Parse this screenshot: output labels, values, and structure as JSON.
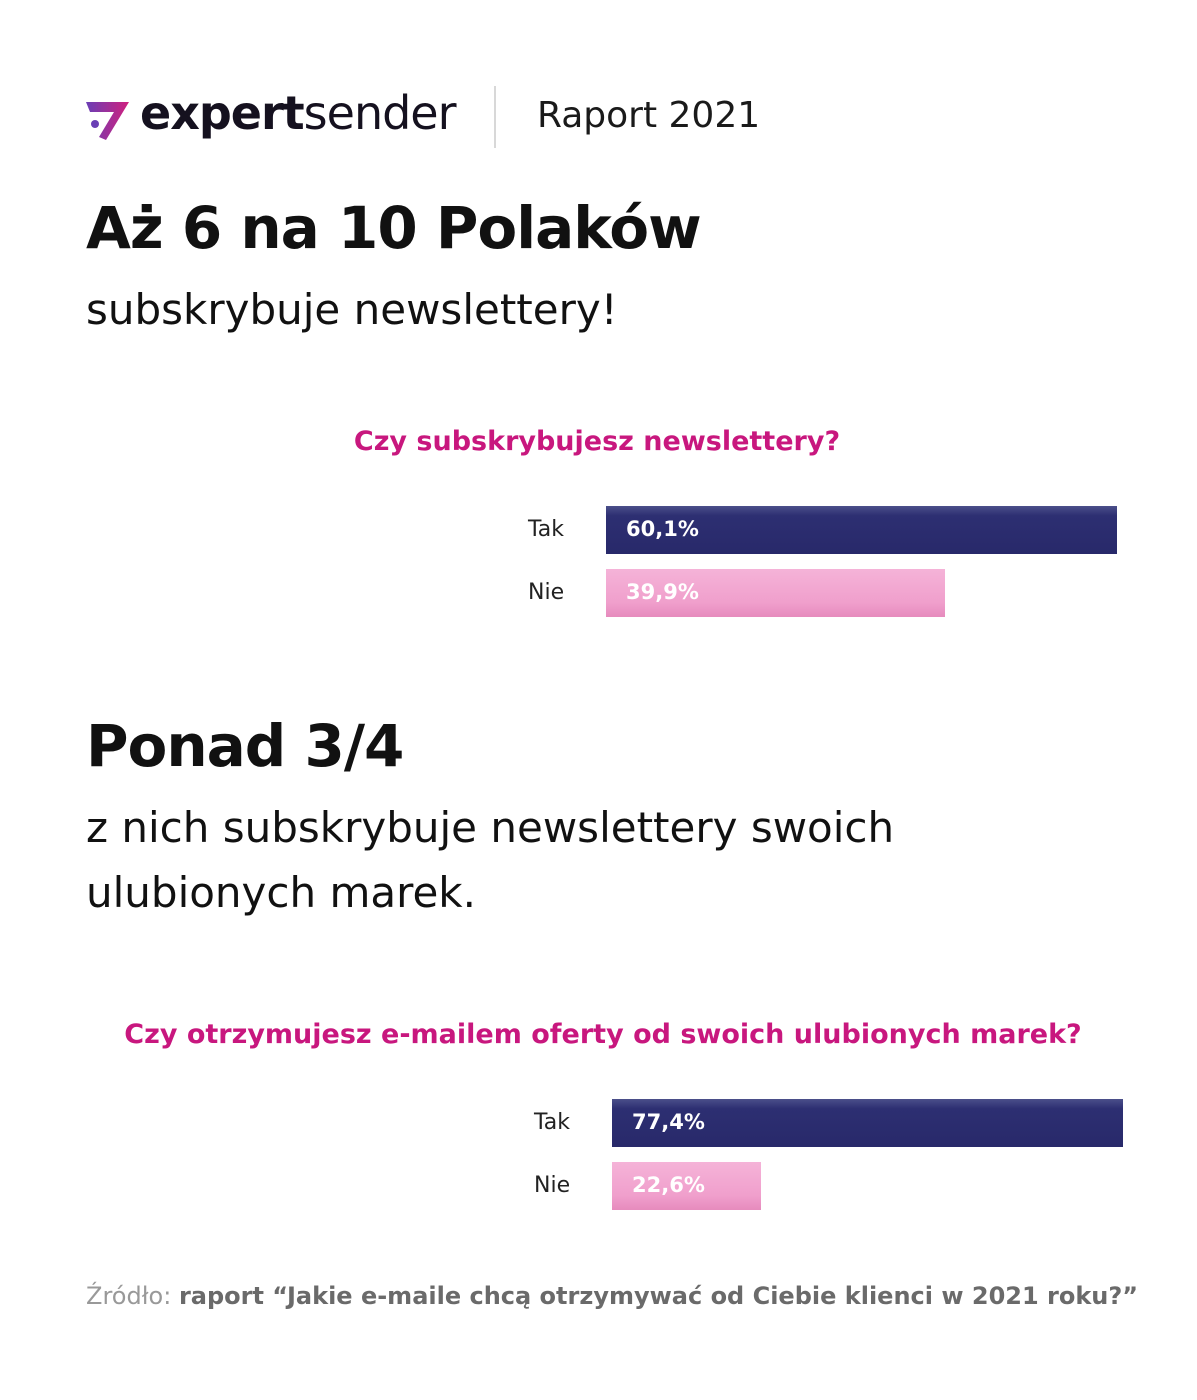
{
  "header": {
    "brand_bold": "expert",
    "brand_light": "sender",
    "report": "Raport 2021"
  },
  "section1": {
    "headline": "Aż 6 na 10 Polaków",
    "sub": "subskrybuje newslettery!"
  },
  "section2": {
    "headline": "Ponad 3/4",
    "sub_line1": "z nich subskrybuje newslettery swoich",
    "sub_line2": "ulubionych marek."
  },
  "colors": {
    "tak": "#2b2c6e",
    "nie": "#f2a6cf",
    "question": "#c8177e"
  },
  "chart_data": [
    {
      "type": "bar",
      "orientation": "horizontal",
      "title": "Czy subskrybujesz newslettery?",
      "categories": [
        "Tak",
        "Nie"
      ],
      "values": [
        60.1,
        39.9
      ],
      "value_labels": [
        "60,1%",
        "39,9%"
      ]
    },
    {
      "type": "bar",
      "orientation": "horizontal",
      "title": "Czy otrzymujesz e-mailem oferty od swoich ulubionych marek?",
      "categories": [
        "Tak",
        "Nie"
      ],
      "values": [
        77.4,
        22.6
      ],
      "value_labels": [
        "77,4%",
        "22,6%"
      ]
    }
  ],
  "source": {
    "prefix": "Źródło:",
    "text": "raport “Jakie e-maile chcą otrzymywać od Ciebie klienci w 2021 roku?”"
  }
}
